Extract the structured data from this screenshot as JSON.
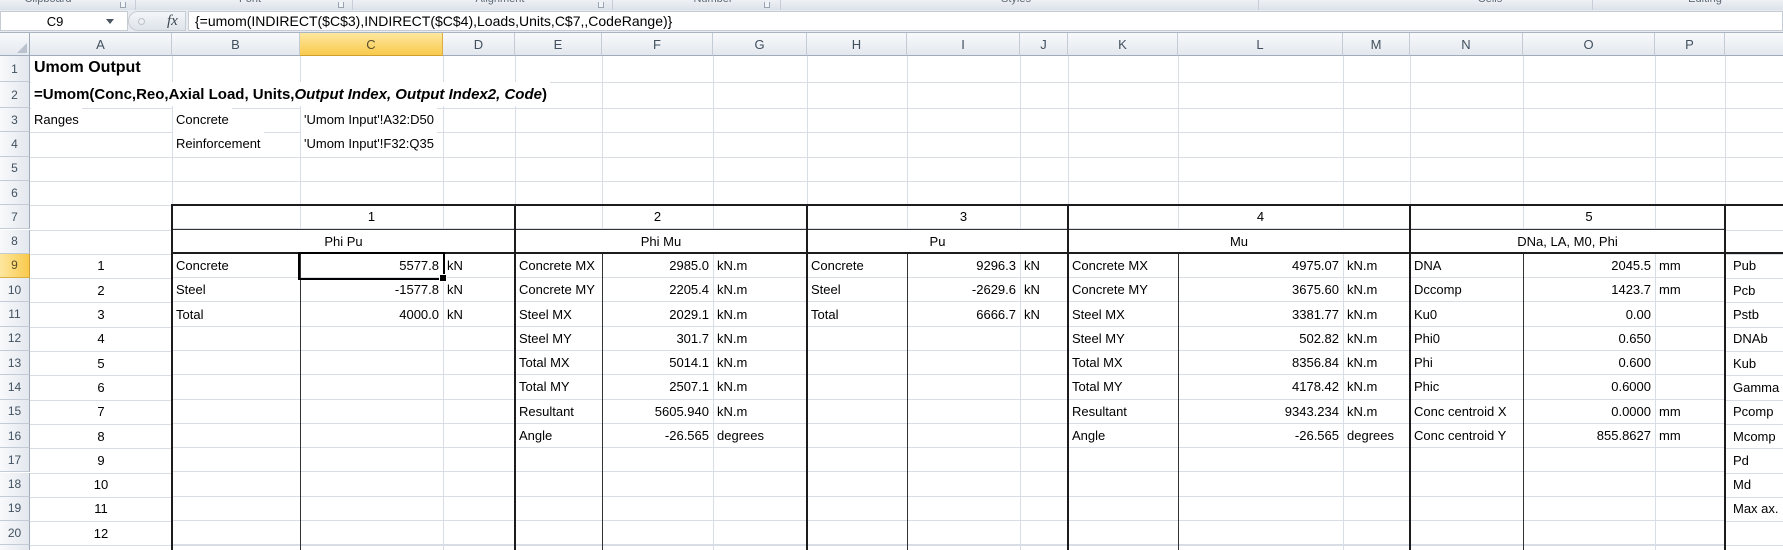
{
  "ribbon_groups": [
    "Clipboard",
    "Font",
    "Alignment",
    "Number",
    "Styles",
    "Cells",
    "Editing"
  ],
  "formula_bar": {
    "cell_ref": "C9",
    "fx_label": "fx",
    "formula": "{=umom(INDIRECT($C$3),INDIRECT($C$4),Loads,Units,C$7,,CodeRange)}"
  },
  "colors": {
    "selected_header_fill": "#F9CA4C",
    "header_fill": "#E7EBF1",
    "gridline": "#D9DEE6",
    "table_border": "#1C1C1C",
    "selection_border": "#000000"
  },
  "sheet": {
    "title": "Umom Output",
    "signature": {
      "prefix": "=Umom(Conc,Reo,Axial Load, Units, ",
      "italic": "Output Index, Output Index2, Code",
      "suffix": ")"
    },
    "ranges_label": "Ranges",
    "ranges": [
      {
        "name": "Concrete",
        "ref": "'Umom Input'!A32:D50"
      },
      {
        "name": "Reinforcement",
        "ref": "'Umom Input'!F32:Q35"
      }
    ],
    "column_letters": [
      "A",
      "B",
      "C",
      "D",
      "E",
      "F",
      "G",
      "H",
      "I",
      "J",
      "K",
      "L",
      "M",
      "N",
      "O",
      "P",
      ""
    ],
    "selected_column": "C",
    "selected_row": 9,
    "row_numbers": [
      "1",
      "2",
      "3",
      "4",
      "5",
      "6",
      "7",
      "8",
      "9",
      "10",
      "11",
      "12",
      "13",
      "14",
      "15",
      "16",
      "17",
      "18",
      "19",
      "20"
    ],
    "row_index_values": [
      "1",
      "2",
      "3",
      "4",
      "5",
      "6",
      "7",
      "8",
      "9",
      "10",
      "11",
      "12"
    ],
    "sections": [
      {
        "index": "1",
        "header": "Phi Pu",
        "rows": [
          [
            "Concrete",
            "5577.8",
            "kN"
          ],
          [
            "Steel",
            "-1577.8",
            "kN"
          ],
          [
            "Total",
            "4000.0",
            "kN"
          ]
        ]
      },
      {
        "index": "2",
        "header": "Phi Mu",
        "rows": [
          [
            "Concrete MX",
            "2985.0",
            "kN.m"
          ],
          [
            "Concrete MY",
            "2205.4",
            "kN.m"
          ],
          [
            "Steel MX",
            "2029.1",
            "kN.m"
          ],
          [
            "Steel MY",
            "301.7",
            "kN.m"
          ],
          [
            "Total MX",
            "5014.1",
            "kN.m"
          ],
          [
            "Total MY",
            "2507.1",
            "kN.m"
          ],
          [
            "Resultant",
            "5605.940",
            "kN.m"
          ],
          [
            "Angle",
            "-26.565",
            "degrees"
          ]
        ]
      },
      {
        "index": "3",
        "header": "Pu",
        "rows": [
          [
            "Concrete",
            "9296.3",
            "kN"
          ],
          [
            "Steel",
            "-2629.6",
            "kN"
          ],
          [
            "Total",
            "6666.7",
            "kN"
          ]
        ]
      },
      {
        "index": "4",
        "header": "Mu",
        "rows": [
          [
            "Concrete MX",
            "4975.07",
            "kN.m"
          ],
          [
            "Concrete MY",
            "3675.60",
            "kN.m"
          ],
          [
            "Steel MX",
            "3381.77",
            "kN.m"
          ],
          [
            "Steel MY",
            "502.82",
            "kN.m"
          ],
          [
            "Total MX",
            "8356.84",
            "kN.m"
          ],
          [
            "Total MY",
            "4178.42",
            "kN.m"
          ],
          [
            "Resultant",
            "9343.234",
            "kN.m"
          ],
          [
            "Angle",
            "-26.565",
            "degrees"
          ]
        ]
      },
      {
        "index": "5",
        "header": "DNa, LA, M0, Phi",
        "rows": [
          [
            "DNA",
            "2045.5",
            "mm"
          ],
          [
            "Dccomp",
            "1423.7",
            "mm"
          ],
          [
            "Ku0",
            "0.00",
            ""
          ],
          [
            "Phi0",
            "0.650",
            ""
          ],
          [
            "Phi",
            "0.600",
            ""
          ],
          [
            "Phic",
            "0.6000",
            ""
          ],
          [
            "Conc centroid X",
            "0.0000",
            "mm"
          ],
          [
            "Conc centroid Y",
            "855.8627",
            "mm"
          ]
        ]
      }
    ],
    "extra_labels": [
      "Pub",
      "Pcb",
      "Pstb",
      "DNAb",
      "Kub",
      "Gamma",
      "Pcomp",
      "Mcomp",
      "Pd",
      "Md",
      "Max ax."
    ]
  }
}
